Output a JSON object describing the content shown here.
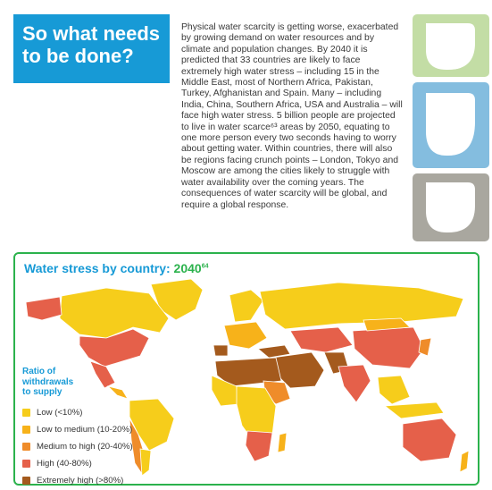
{
  "heading": {
    "line1": "So what needs",
    "line2": "to be done?"
  },
  "body_text": "Physical water scarcity is getting worse, exacerbated by growing demand on water resources and by climate and population changes. By 2040 it is predicted that 33 countries are likely to face extremely high water stress – including 15 in the Middle East, most of Northern Africa, Pakistan, Turkey, Afghanistan and Spain. Many – including India, China, Southern Africa, USA and Australia – will face high water stress. 5 billion people are projected to live in water scarce⁶³ areas by 2050, equating to one more person every two seconds having to worry about getting water. Within countries, there will also be regions facing crunch points – London, Tokyo and Moscow are among the cities likely to struggle with water availability over the coming years. The consequences of water scarcity will be global, and require a global response.",
  "tiles": [
    {
      "color": "#c3dda5",
      "icon": "leaf-drop-icon"
    },
    {
      "color": "#84bddf",
      "icon": "water-drop-icon"
    },
    {
      "color": "#a9a79f",
      "icon": "drop-icon"
    }
  ],
  "map": {
    "title": "Water stress by country: ",
    "year": "2040",
    "footnote": "64",
    "legend_heading": [
      "Ratio of",
      "withdrawals",
      "to supply"
    ],
    "legend": [
      {
        "label": "Low (<10%)",
        "color": "#f6cd1b"
      },
      {
        "label": "Low to medium (10-20%)",
        "color": "#f7b21a"
      },
      {
        "label": "Medium to high (20-40%)",
        "color": "#ef8c2a"
      },
      {
        "label": "High (40-80%)",
        "color": "#e5604a"
      },
      {
        "label": "Extremely high (>80%)",
        "color": "#a45a1d"
      }
    ]
  }
}
